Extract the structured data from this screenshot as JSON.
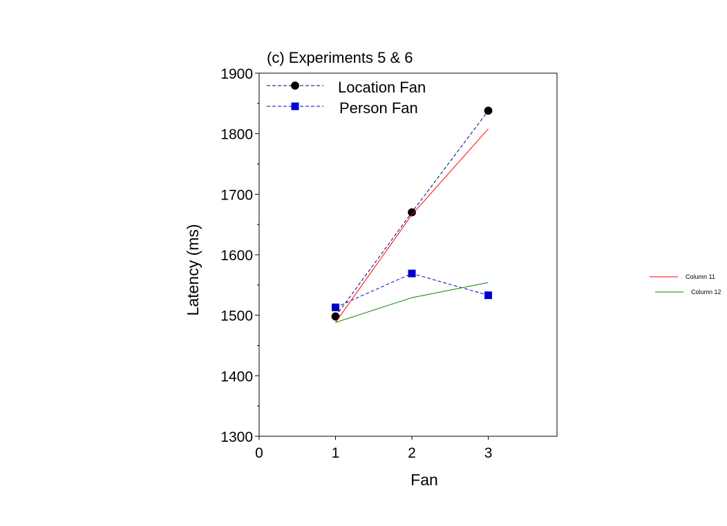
{
  "chart_data": {
    "type": "line",
    "title": "(c) Experiments 5 & 6",
    "xlabel": "Fan",
    "ylabel": "Latency (ms)",
    "xlim": [
      0,
      3.9
    ],
    "ylim": [
      1300,
      1900
    ],
    "xticks": [
      0,
      1,
      2,
      3
    ],
    "yticks": [
      1300,
      1400,
      1500,
      1600,
      1700,
      1800,
      1900
    ],
    "grid": false,
    "legend_position": "top-left",
    "series": [
      {
        "name": "Location Fan",
        "x": [
          1,
          2,
          3
        ],
        "y": [
          1498,
          1670,
          1838
        ],
        "color": "#000080",
        "marker": "circle",
        "marker_color": "#000000",
        "line_style": "dashed"
      },
      {
        "name": "Person Fan",
        "x": [
          1,
          2,
          3
        ],
        "y": [
          1513,
          1569,
          1533
        ],
        "color": "#0000cc",
        "marker": "square",
        "marker_color": "#0000cc",
        "line_style": "dashed"
      },
      {
        "name": "Column 11",
        "x": [
          1,
          2,
          3
        ],
        "y": [
          1488,
          1666,
          1808
        ],
        "color": "#ff0000",
        "marker": "none",
        "line_style": "solid"
      },
      {
        "name": "Column 12",
        "x": [
          1,
          2,
          3
        ],
        "y": [
          1488,
          1529,
          1554
        ],
        "color": "#008000",
        "marker": "none",
        "line_style": "solid"
      }
    ],
    "side_legend": [
      "Column 11",
      "Column 12"
    ]
  }
}
